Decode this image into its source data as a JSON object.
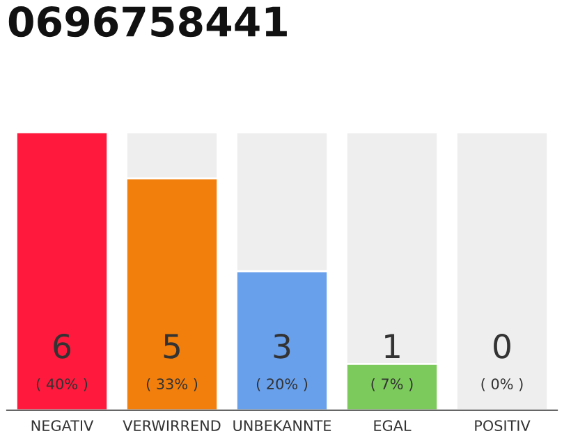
{
  "chart_data": {
    "type": "bar",
    "title": "0696758441",
    "categories": [
      "NEGATIV",
      "VERWIRREND",
      "UNBEKANNTE",
      "EGAL",
      "POSITIV"
    ],
    "values": [
      6,
      5,
      3,
      1,
      0
    ],
    "colors": [
      "#ff1a3d",
      "#f27f0c",
      "#69a0ec",
      "#7cc95c",
      null
    ],
    "value_labels": [
      "6\n( 40% )",
      "5\n( 33% )",
      "3\n( 20% )",
      "1\n( 7% )",
      "0\n( 0% )"
    ],
    "grid": false
  }
}
